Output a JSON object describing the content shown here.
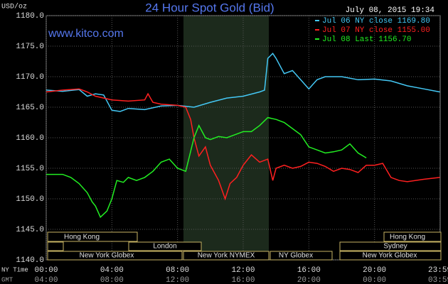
{
  "chart_data": {
    "type": "line",
    "title": "24 Hour Spot Gold (Bid)",
    "y_label": "USD/oz",
    "timestamp": "July 08, 2015 19:34",
    "watermark": "www.kitco.com",
    "x_label": "NY Time",
    "x2_label": "GMT",
    "xlim": [
      0,
      24
    ],
    "xticks": [
      {
        "value": 0,
        "label": "00:00"
      },
      {
        "value": 4,
        "label": "04:00"
      },
      {
        "value": 8,
        "label": "08:00"
      },
      {
        "value": 12,
        "label": "12:00"
      },
      {
        "value": 16,
        "label": "16:00"
      },
      {
        "value": 20,
        "label": "20:00"
      },
      {
        "value": 23.98,
        "label": "23:59"
      }
    ],
    "x2ticks": [
      {
        "value": 0,
        "label": "04:00"
      },
      {
        "value": 4,
        "label": "08:00"
      },
      {
        "value": 8,
        "label": "12:00"
      },
      {
        "value": 12,
        "label": "16:00"
      },
      {
        "value": 16,
        "label": "20:00"
      },
      {
        "value": 20,
        "label": "00:00"
      },
      {
        "value": 23.98,
        "label": "03:59"
      }
    ],
    "ylim": [
      1140,
      1180
    ],
    "yticks": [
      {
        "value": 1140,
        "label": "1140.0"
      },
      {
        "value": 1145,
        "label": "1145.0"
      },
      {
        "value": 1150,
        "label": "1150.0"
      },
      {
        "value": 1155,
        "label": "1155.0"
      },
      {
        "value": 1160,
        "label": "1160.0"
      },
      {
        "value": 1165,
        "label": "1165.0"
      },
      {
        "value": 1170,
        "label": "1170.0"
      },
      {
        "value": 1175,
        "label": "1175.0"
      },
      {
        "value": 1180,
        "label": "1180.0"
      }
    ],
    "grid": true,
    "sessions": [
      "Hong Kong",
      "Hong Kong",
      "London",
      "Sydney",
      "New York Globex",
      "New York NYMEX",
      "NY Globex",
      "New York Globex"
    ],
    "series": [
      {
        "name": "Jul 06 NY close 1169.80",
        "color": "#44c8f5",
        "x": [
          0,
          1,
          2,
          2.5,
          3,
          3.5,
          4,
          4.5,
          5,
          6,
          7,
          8,
          9,
          10,
          11,
          12,
          13,
          13.3,
          13.5,
          13.8,
          14,
          14.5,
          15,
          15.5,
          16,
          16.5,
          17,
          18,
          19,
          20,
          21,
          22,
          23,
          23.98
        ],
        "values": [
          1167.8,
          1167.6,
          1167.9,
          1166.8,
          1167.2,
          1167.0,
          1164.5,
          1164.3,
          1164.8,
          1164.6,
          1165.2,
          1165.3,
          1165.0,
          1165.8,
          1166.5,
          1166.8,
          1167.5,
          1167.8,
          1173.0,
          1173.8,
          1173.0,
          1170.5,
          1171.0,
          1169.5,
          1168.0,
          1169.5,
          1170.0,
          1170.0,
          1169.5,
          1169.6,
          1169.3,
          1168.5,
          1168.0,
          1167.5
        ]
      },
      {
        "name": "Jul 07 NY close 1155.00",
        "color": "#ff2020",
        "x": [
          0,
          1,
          2,
          2.5,
          3,
          3.5,
          4,
          5,
          6,
          6.2,
          6.5,
          7,
          8,
          8.5,
          8.8,
          9,
          9.3,
          9.7,
          10,
          10.5,
          10.9,
          11.2,
          11.6,
          12,
          12.5,
          13,
          13.5,
          13.8,
          14,
          14.5,
          15,
          15.5,
          16,
          16.5,
          17,
          17.5,
          18,
          18.5,
          19,
          19.5,
          20,
          20.5,
          21,
          21.5,
          22,
          23,
          23.98
        ],
        "values": [
          1167.5,
          1167.8,
          1168.0,
          1167.5,
          1166.8,
          1166.5,
          1166.2,
          1166.0,
          1166.2,
          1167.2,
          1165.8,
          1165.5,
          1165.3,
          1165.0,
          1163.0,
          1160.0,
          1157.0,
          1158.5,
          1155.5,
          1153.0,
          1150.0,
          1152.5,
          1153.5,
          1155.5,
          1157.2,
          1156.0,
          1156.5,
          1153.0,
          1155.0,
          1155.5,
          1155.0,
          1155.3,
          1156.0,
          1155.8,
          1155.3,
          1154.5,
          1155.0,
          1154.8,
          1154.3,
          1155.5,
          1155.5,
          1155.8,
          1153.5,
          1153.0,
          1152.8,
          1153.2,
          1153.5
        ]
      },
      {
        "name": "Jul 08 Last 1156.70",
        "color": "#22ee22",
        "x": [
          0,
          1,
          1.5,
          2,
          2.5,
          2.8,
          3,
          3.3,
          3.7,
          4,
          4.3,
          4.7,
          5,
          5.5,
          6,
          6.5,
          7,
          7.5,
          8,
          8.5,
          9,
          9.3,
          9.7,
          10,
          10.5,
          11,
          11.5,
          12,
          12.5,
          13,
          13.5,
          14,
          14.5,
          15,
          15.5,
          16,
          16.5,
          17,
          17.5,
          18,
          18.5,
          19,
          19.5
        ],
        "values": [
          1154.0,
          1154.0,
          1153.5,
          1152.5,
          1151.0,
          1149.5,
          1148.8,
          1147.0,
          1148.0,
          1150.0,
          1153.0,
          1152.7,
          1153.5,
          1153.0,
          1153.5,
          1154.5,
          1156.0,
          1156.5,
          1155.0,
          1154.5,
          1160.0,
          1162.0,
          1160.0,
          1159.7,
          1160.2,
          1160.0,
          1160.5,
          1161.0,
          1161.0,
          1162.0,
          1163.3,
          1163.0,
          1162.5,
          1161.5,
          1160.5,
          1158.5,
          1158.0,
          1157.5,
          1157.7,
          1158.0,
          1159.0,
          1157.5,
          1156.7
        ]
      }
    ]
  }
}
